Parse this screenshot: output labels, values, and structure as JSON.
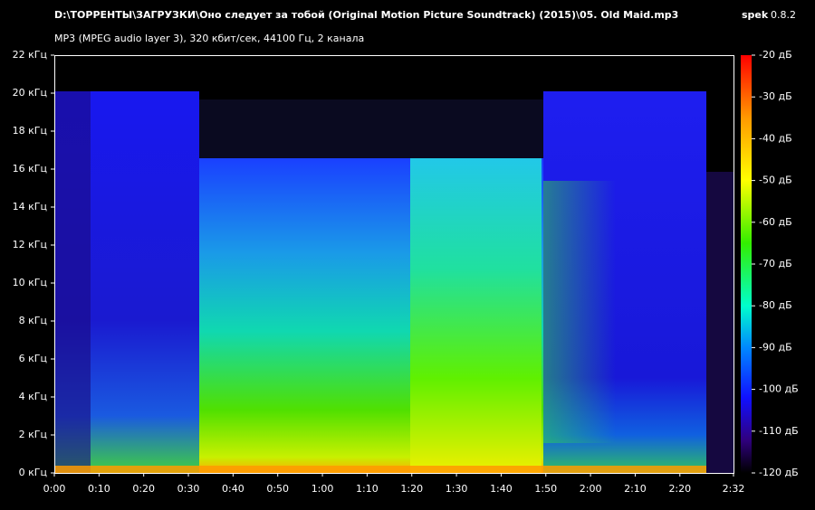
{
  "chart_data": {
    "type": "spectrogram",
    "title": "D:\\ТОРРЕНТЫ\\ЗАГРУЗКИ\\Оно следует за тобой (Original Motion Picture Soundtrack) (2015)\\05. Old Maid.mp3",
    "subtitle": "MP3 (MPEG audio layer 3), 320 кбит/сек, 44100 Гц, 2 канала",
    "app": "spek",
    "version": "0.8.2",
    "xlim": [
      0,
      152
    ],
    "xticks": [
      {
        "value": 0,
        "label": "0:00"
      },
      {
        "value": 10,
        "label": "0:10"
      },
      {
        "value": 20,
        "label": "0:20"
      },
      {
        "value": 30,
        "label": "0:30"
      },
      {
        "value": 40,
        "label": "0:40"
      },
      {
        "value": 50,
        "label": "0:50"
      },
      {
        "value": 60,
        "label": "1:00"
      },
      {
        "value": 70,
        "label": "1:10"
      },
      {
        "value": 80,
        "label": "1:20"
      },
      {
        "value": 90,
        "label": "1:30"
      },
      {
        "value": 100,
        "label": "1:40"
      },
      {
        "value": 110,
        "label": "1:50"
      },
      {
        "value": 120,
        "label": "2:00"
      },
      {
        "value": 130,
        "label": "2:10"
      },
      {
        "value": 140,
        "label": "2:20"
      },
      {
        "value": 152,
        "label": "2:32"
      }
    ],
    "ylim": [
      0,
      22
    ],
    "yticks": [
      {
        "value": 0,
        "label": "0 кГц"
      },
      {
        "value": 2,
        "label": "2 кГц"
      },
      {
        "value": 4,
        "label": "4 кГц"
      },
      {
        "value": 6,
        "label": "6 кГц"
      },
      {
        "value": 8,
        "label": "8 кГц"
      },
      {
        "value": 10,
        "label": "10 кГц"
      },
      {
        "value": 12,
        "label": "12 кГц"
      },
      {
        "value": 14,
        "label": "14 кГц"
      },
      {
        "value": 16,
        "label": "16 кГц"
      },
      {
        "value": 18,
        "label": "18 кГц"
      },
      {
        "value": 20,
        "label": "20 кГц"
      },
      {
        "value": 22,
        "label": "22 кГц"
      }
    ],
    "clim": [
      -120,
      -20
    ],
    "cticks": [
      {
        "value": -20,
        "label": "-20 дБ"
      },
      {
        "value": -30,
        "label": "-30 дБ"
      },
      {
        "value": -40,
        "label": "-40 дБ"
      },
      {
        "value": -50,
        "label": "-50 дБ"
      },
      {
        "value": -60,
        "label": "-60 дБ"
      },
      {
        "value": -70,
        "label": "-70 дБ"
      },
      {
        "value": -80,
        "label": "-80 дБ"
      },
      {
        "value": -90,
        "label": "-90 дБ"
      },
      {
        "value": -100,
        "label": "-100 дБ"
      },
      {
        "value": -110,
        "label": "-110 дБ"
      },
      {
        "value": -120,
        "label": "-120 дБ"
      }
    ]
  }
}
